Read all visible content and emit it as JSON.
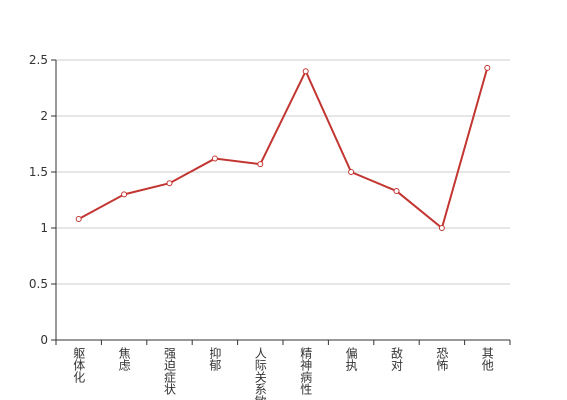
{
  "chart_data": {
    "type": "line",
    "categories": [
      "躯体化",
      "焦虑",
      "强迫症状",
      "抑郁",
      "人际关系敏感",
      "精神病性",
      "偏执",
      "敌对",
      "恐怖",
      "其他"
    ],
    "series": [
      {
        "color": "#c23531",
        "values": [
          1.08,
          1.3,
          1.4,
          1.62,
          1.57,
          2.4,
          1.5,
          1.33,
          1.0,
          2.43
        ]
      }
    ],
    "ylim": [
      0,
      2.5
    ],
    "yticks": [
      0,
      0.5,
      1,
      1.5,
      2,
      2.5
    ],
    "grid": true
  }
}
